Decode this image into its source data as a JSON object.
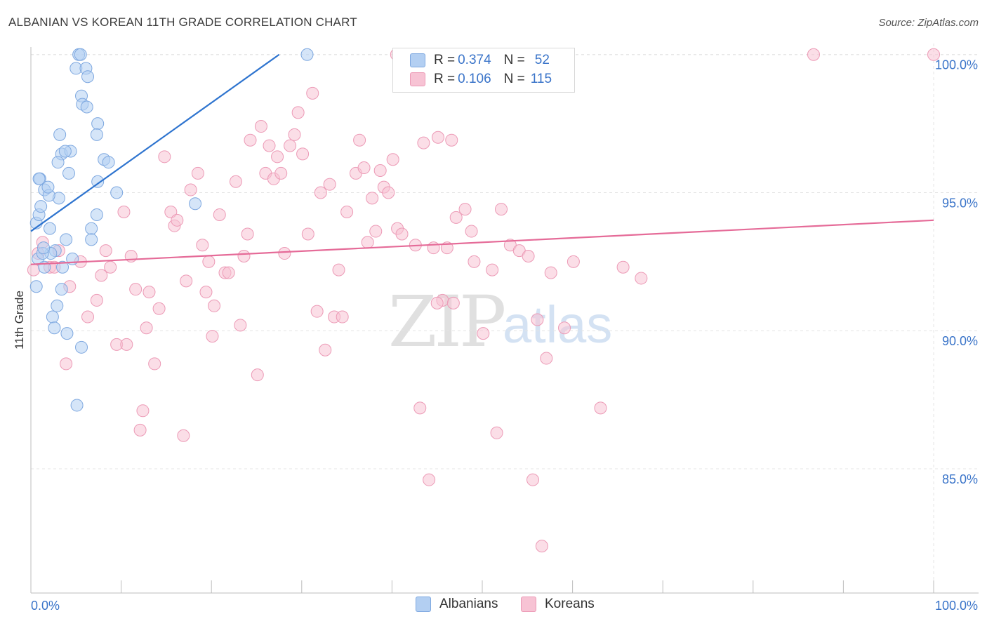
{
  "header": {
    "title": "ALBANIAN VS KOREAN 11TH GRADE CORRELATION CHART",
    "source": "Source: ZipAtlas.com"
  },
  "legend": {
    "albanian": {
      "r_label": "R = ",
      "r": "0.374",
      "n_label": "N = ",
      "n": "52"
    },
    "korean": {
      "r_label": "R = ",
      "r": "0.106",
      "n_label": "N = ",
      "n": "115"
    }
  },
  "bottom_legend": {
    "albanian": "Albanians",
    "korean": "Koreans"
  },
  "watermark": {
    "zip": "ZIP",
    "atlas": "atlas"
  },
  "colors": {
    "albanian_fill": "#b3cff2",
    "albanian_stroke": "#7ea8e0",
    "albanian_line": "#2e74cf",
    "korean_fill": "#f7c3d4",
    "korean_stroke": "#ec9ab6",
    "korean_line": "#e56b98",
    "axis_label": "#3a74c9",
    "grid": "#e4e4e4"
  },
  "chart_data": {
    "type": "scatter",
    "title": "ALBANIAN VS KOREAN 11TH GRADE CORRELATION CHART",
    "xlabel": "",
    "ylabel": "11th Grade",
    "xlim": [
      0,
      100
    ],
    "ylim": [
      80.5,
      100.4
    ],
    "x_tick_labels": [
      "0.0%",
      "100.0%"
    ],
    "y_ticks": [
      85,
      90,
      95,
      100
    ],
    "y_tick_labels": [
      "85.0%",
      "90.0%",
      "95.0%",
      "100.0%"
    ],
    "legend_position": "top-center",
    "series": [
      {
        "name": "Albanians",
        "r": 0.374,
        "n": 52,
        "trend": {
          "x": [
            0,
            27.5
          ],
          "y": [
            93.6,
            100.0
          ]
        },
        "points": [
          [
            0.6,
            93.9
          ],
          [
            0.9,
            94.2
          ],
          [
            1.1,
            94.5
          ],
          [
            1.0,
            95.5
          ],
          [
            1.5,
            95.1
          ],
          [
            0.8,
            92.6
          ],
          [
            1.5,
            92.3
          ],
          [
            2.1,
            93.7
          ],
          [
            2.7,
            92.9
          ],
          [
            3.1,
            94.8
          ],
          [
            3.5,
            92.3
          ],
          [
            2.9,
            90.9
          ],
          [
            3.9,
            93.3
          ],
          [
            4.6,
            92.6
          ],
          [
            3.4,
            91.5
          ],
          [
            2.4,
            90.5
          ],
          [
            2.6,
            90.1
          ],
          [
            4.0,
            89.9
          ],
          [
            5.6,
            89.4
          ],
          [
            5.1,
            87.3
          ],
          [
            3.2,
            97.1
          ],
          [
            3.4,
            96.4
          ],
          [
            4.4,
            96.5
          ],
          [
            5.3,
            100.0
          ],
          [
            5.5,
            100.0
          ],
          [
            5.0,
            99.5
          ],
          [
            6.1,
            99.5
          ],
          [
            6.3,
            99.2
          ],
          [
            5.6,
            98.5
          ],
          [
            5.7,
            98.2
          ],
          [
            6.2,
            98.1
          ],
          [
            7.4,
            97.5
          ],
          [
            7.3,
            97.1
          ],
          [
            8.1,
            96.2
          ],
          [
            8.6,
            96.1
          ],
          [
            7.4,
            95.4
          ],
          [
            9.5,
            95.0
          ],
          [
            7.3,
            94.2
          ],
          [
            6.7,
            93.7
          ],
          [
            6.7,
            93.3
          ],
          [
            18.2,
            94.6
          ],
          [
            30.6,
            100.0
          ],
          [
            3.8,
            96.5
          ],
          [
            3.0,
            96.1
          ],
          [
            4.2,
            95.7
          ],
          [
            2.0,
            94.9
          ],
          [
            0.6,
            91.6
          ],
          [
            0.9,
            95.5
          ],
          [
            2.2,
            92.8
          ],
          [
            1.3,
            92.8
          ],
          [
            1.9,
            95.2
          ],
          [
            1.4,
            93.0
          ]
        ]
      },
      {
        "name": "Koreans",
        "r": 0.106,
        "n": 115,
        "trend": {
          "x": [
            0,
            100
          ],
          "y": [
            92.4,
            94.0
          ]
        },
        "points": [
          [
            0.3,
            92.2
          ],
          [
            0.8,
            92.8
          ],
          [
            1.3,
            93.2
          ],
          [
            2.1,
            92.3
          ],
          [
            2.6,
            92.3
          ],
          [
            3.1,
            92.9
          ],
          [
            3.9,
            88.8
          ],
          [
            4.3,
            91.6
          ],
          [
            5.5,
            92.5
          ],
          [
            6.3,
            90.5
          ],
          [
            7.3,
            91.1
          ],
          [
            7.8,
            92.0
          ],
          [
            8.3,
            92.9
          ],
          [
            8.8,
            92.3
          ],
          [
            9.5,
            89.5
          ],
          [
            10.3,
            94.3
          ],
          [
            10.6,
            89.5
          ],
          [
            11.1,
            92.7
          ],
          [
            11.6,
            91.5
          ],
          [
            12.1,
            86.4
          ],
          [
            12.4,
            87.1
          ],
          [
            12.8,
            90.1
          ],
          [
            13.1,
            91.4
          ],
          [
            13.7,
            88.8
          ],
          [
            14.2,
            90.8
          ],
          [
            14.8,
            96.3
          ],
          [
            15.5,
            94.3
          ],
          [
            15.9,
            93.8
          ],
          [
            16.2,
            94.0
          ],
          [
            16.9,
            86.2
          ],
          [
            17.2,
            91.8
          ],
          [
            17.7,
            95.1
          ],
          [
            18.5,
            95.7
          ],
          [
            19.0,
            93.1
          ],
          [
            19.4,
            91.4
          ],
          [
            19.7,
            92.5
          ],
          [
            20.1,
            89.8
          ],
          [
            20.9,
            94.2
          ],
          [
            21.5,
            92.1
          ],
          [
            21.9,
            92.1
          ],
          [
            22.7,
            95.4
          ],
          [
            23.2,
            90.2
          ],
          [
            23.6,
            92.7
          ],
          [
            24.0,
            93.5
          ],
          [
            24.3,
            96.9
          ],
          [
            25.1,
            88.4
          ],
          [
            25.5,
            97.4
          ],
          [
            26.0,
            95.7
          ],
          [
            26.4,
            96.7
          ],
          [
            26.9,
            95.5
          ],
          [
            27.3,
            96.3
          ],
          [
            27.7,
            95.7
          ],
          [
            28.1,
            92.8
          ],
          [
            28.7,
            96.7
          ],
          [
            29.2,
            97.1
          ],
          [
            29.6,
            97.9
          ],
          [
            30.1,
            96.4
          ],
          [
            30.7,
            93.5
          ],
          [
            31.2,
            98.6
          ],
          [
            31.7,
            90.7
          ],
          [
            32.1,
            95.0
          ],
          [
            32.6,
            89.3
          ],
          [
            33.1,
            95.3
          ],
          [
            33.6,
            90.5
          ],
          [
            34.1,
            92.2
          ],
          [
            34.5,
            90.5
          ],
          [
            35.0,
            94.3
          ],
          [
            36.0,
            95.7
          ],
          [
            36.4,
            96.9
          ],
          [
            36.9,
            95.9
          ],
          [
            37.3,
            93.2
          ],
          [
            37.8,
            94.8
          ],
          [
            38.2,
            93.6
          ],
          [
            38.7,
            95.8
          ],
          [
            39.1,
            95.2
          ],
          [
            39.6,
            95.0
          ],
          [
            40.1,
            96.2
          ],
          [
            40.6,
            93.7
          ],
          [
            41.1,
            93.5
          ],
          [
            42.6,
            93.1
          ],
          [
            43.1,
            87.2
          ],
          [
            43.5,
            96.8
          ],
          [
            44.1,
            84.6
          ],
          [
            44.6,
            93.0
          ],
          [
            45.1,
            97.0
          ],
          [
            45.6,
            91.1
          ],
          [
            46.1,
            93.0
          ],
          [
            46.6,
            96.9
          ],
          [
            46.8,
            91.0
          ],
          [
            47.1,
            94.1
          ],
          [
            48.1,
            94.4
          ],
          [
            48.8,
            93.6
          ],
          [
            49.1,
            92.5
          ],
          [
            50.1,
            89.9
          ],
          [
            51.1,
            92.2
          ],
          [
            51.6,
            86.3
          ],
          [
            52.1,
            94.4
          ],
          [
            53.1,
            93.1
          ],
          [
            54.1,
            92.9
          ],
          [
            55.1,
            92.7
          ],
          [
            55.6,
            84.6
          ],
          [
            56.1,
            90.4
          ],
          [
            57.1,
            89.0
          ],
          [
            57.6,
            92.1
          ],
          [
            59.1,
            90.1
          ],
          [
            63.1,
            87.2
          ],
          [
            65.6,
            92.3
          ],
          [
            67.6,
            91.9
          ],
          [
            60.1,
            92.5
          ],
          [
            56.6,
            82.2
          ],
          [
            86.7,
            100.0
          ],
          [
            100.0,
            100.0
          ],
          [
            40.5,
            100.0
          ],
          [
            20.3,
            90.9
          ],
          [
            45.0,
            91.0
          ]
        ]
      }
    ]
  }
}
